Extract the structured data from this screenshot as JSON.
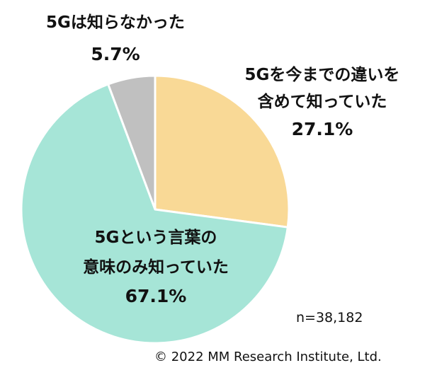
{
  "chart_data": {
    "type": "pie",
    "slices": [
      {
        "label_line1": "5Gを今までの違いを",
        "label_line2": "含めて知っていた",
        "value_label": "27.1%",
        "value": 27.1,
        "color": "#f9d996"
      },
      {
        "label_line1": "5Gという言葉の",
        "label_line2": "意味のみ知っていた",
        "value_label": "67.1%",
        "value": 67.1,
        "color": "#a6e5d7"
      },
      {
        "label_line1": "5Gは知らなかった",
        "label_line2": "",
        "value_label": "5.7%",
        "value": 5.7,
        "color": "#c0c0c0"
      }
    ],
    "start_angle": "12 o'clock",
    "direction": "clockwise"
  },
  "note": "n=38,182",
  "copyright": "© 2022 MM Research Institute, Ltd."
}
